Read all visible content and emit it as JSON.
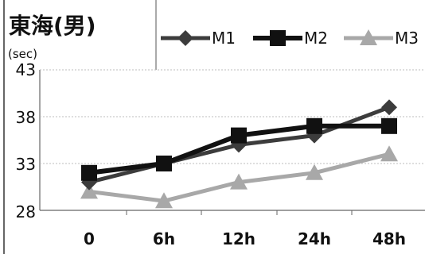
{
  "chart_data": {
    "type": "line",
    "title": "東海(男)",
    "ylabel": "(sec)",
    "xlabel": "",
    "categories": [
      "0",
      "6h",
      "12h",
      "24h",
      "48h"
    ],
    "ylim": [
      28,
      43
    ],
    "yticks": [
      43,
      38,
      33,
      28
    ],
    "grid": true,
    "legend": "top-right",
    "series": [
      {
        "name": "M1",
        "values": [
          31,
          33,
          35,
          36,
          39
        ],
        "color": "#3c3c3c",
        "marker": "diamond"
      },
      {
        "name": "M2",
        "values": [
          32,
          33,
          36,
          37,
          37
        ],
        "color": "#111111",
        "marker": "square"
      },
      {
        "name": "M3",
        "values": [
          30,
          29,
          31,
          32,
          34
        ],
        "color": "#a8a8a8",
        "marker": "triangle"
      }
    ]
  }
}
